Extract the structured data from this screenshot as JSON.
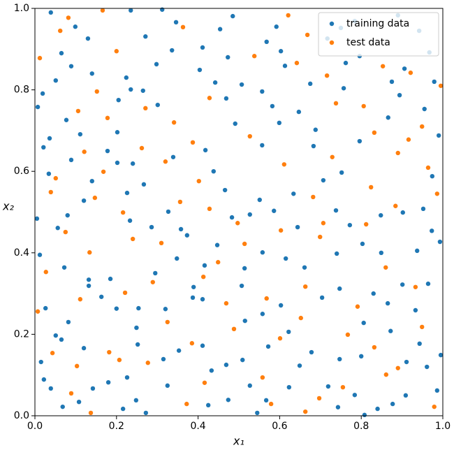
{
  "chart_data": {
    "type": "scatter",
    "xlabel": "x₁",
    "ylabel": "x₂",
    "xlim": [
      0,
      1
    ],
    "ylim": [
      0,
      1
    ],
    "xticks": [
      {
        "value": 0,
        "label": "0.0"
      },
      0.2,
      0.4,
      0.6,
      0.8,
      {
        "value": 1,
        "label": "1.0"
      }
    ],
    "yticks": [
      {
        "value": 0,
        "label": "0.0"
      },
      0.2,
      0.4,
      0.6,
      0.8,
      {
        "value": 1,
        "label": "1.0"
      }
    ],
    "legend": "upper right",
    "series": [
      {
        "name": "training data",
        "color": "#1f77b4",
        "x": [
          0.039,
          0.099,
          0.13,
          0.065,
          0.089,
          0.051,
          0.019,
          0.007,
          0.235,
          0.312,
          0.271,
          0.336,
          0.298,
          0.224,
          0.14,
          0.235,
          0.265,
          0.205,
          0.346,
          0.454,
          0.485,
          0.411,
          0.473,
          0.404,
          0.442,
          0.507,
          0.592,
          0.603,
          0.568,
          0.717,
          0.75,
          0.784,
          0.89,
          0.942,
          0.967,
          0.796,
          0.762,
          0.906,
          0.979,
          0.875,
          0.757,
          0.675,
          0.613,
          0.557,
          0.582,
          0.647,
          0.599,
          0.688,
          0.796,
          0.99,
          0.866,
          0.955,
          0.894,
          0.077,
          0.111,
          0.036,
          0.021,
          0.089,
          0.034,
          0.14,
          0.12,
          0.08,
          0.056,
          0.005,
          0.178,
          0.202,
          0.24,
          0.267,
          0.226,
          0.327,
          0.233,
          0.286,
          0.358,
          0.339,
          0.418,
          0.438,
          0.466,
          0.483,
          0.373,
          0.447,
          0.527,
          0.551,
          0.586,
          0.634,
          0.707,
          0.752,
          0.644,
          0.738,
          0.772,
          0.848,
          0.902,
          0.952,
          0.974,
          0.993,
          0.973,
          0.937,
          0.849,
          0.803,
          0.74,
          0.661,
          0.615,
          0.558,
          0.514,
          0.416,
          0.348,
          0.295,
          0.185,
          0.132,
          0.012,
          0.072,
          0.026,
          0.082,
          0.051,
          0.065,
          0.132,
          0.163,
          0.2,
          0.254,
          0.249,
          0.32,
          0.387,
          0.389,
          0.411,
          0.507,
          0.515,
          0.558,
          0.603,
          0.704,
          0.747,
          0.83,
          0.901,
          0.964,
          0.933,
          0.865,
          0.806,
          0.872,
          0.943,
          0.995,
          0.911,
          0.8,
          0.747,
          0.678,
          0.622,
          0.572,
          0.509,
          0.469,
          0.433,
          0.411,
          0.353,
          0.315,
          0.252,
          0.226,
          0.18,
          0.142,
          0.12,
          0.015,
          0.022,
          0.039,
          0.068,
          0.108,
          0.216,
          0.248,
          0.272,
          0.425,
          0.527,
          0.545,
          0.567,
          0.623,
          0.649,
          0.719,
          0.743,
          0.784,
          0.808,
          0.84,
          0.877,
          0.909,
          0.986,
          0.961,
          0.325,
          0.474,
          0.301,
          0.202,
          0.469,
          0.491,
          0.557,
          0.683
        ],
        "values": [
          0.99,
          0.955,
          0.926,
          0.89,
          0.858,
          0.823,
          0.791,
          0.758,
          0.995,
          0.997,
          0.931,
          0.897,
          0.863,
          0.83,
          0.84,
          0.801,
          0.798,
          0.775,
          0.966,
          0.949,
          0.981,
          0.904,
          0.88,
          0.849,
          0.818,
          0.813,
          0.955,
          0.895,
          0.918,
          0.926,
          0.952,
          0.969,
          0.983,
          0.945,
          0.892,
          0.883,
          0.866,
          0.852,
          0.82,
          0.82,
          0.804,
          0.815,
          0.859,
          0.796,
          0.76,
          0.746,
          0.719,
          0.702,
          0.674,
          0.688,
          0.732,
          0.753,
          0.787,
          0.726,
          0.691,
          0.681,
          0.659,
          0.628,
          0.594,
          0.576,
          0.528,
          0.492,
          0.461,
          0.484,
          0.65,
          0.621,
          0.619,
          0.568,
          0.547,
          0.501,
          0.479,
          0.463,
          0.458,
          0.635,
          0.652,
          0.6,
          0.554,
          0.487,
          0.443,
          0.419,
          0.494,
          0.53,
          0.503,
          0.545,
          0.578,
          0.597,
          0.463,
          0.504,
          0.468,
          0.492,
          0.499,
          0.508,
          0.588,
          0.427,
          0.454,
          0.405,
          0.4,
          0.422,
          0.398,
          0.364,
          0.386,
          0.401,
          0.362,
          0.369,
          0.386,
          0.35,
          0.336,
          0.334,
          0.395,
          0.364,
          0.264,
          0.23,
          0.197,
          0.187,
          0.319,
          0.292,
          0.263,
          0.264,
          0.216,
          0.262,
          0.29,
          0.316,
          0.286,
          0.319,
          0.233,
          0.25,
          0.271,
          0.29,
          0.312,
          0.3,
          0.322,
          0.324,
          0.259,
          0.276,
          0.228,
          0.208,
          0.177,
          0.149,
          0.132,
          0.146,
          0.139,
          0.156,
          0.206,
          0.17,
          0.137,
          0.125,
          0.111,
          0.172,
          0.16,
          0.139,
          0.175,
          0.094,
          0.082,
          0.067,
          0.166,
          0.132,
          0.089,
          0.067,
          0.022,
          0.034,
          0.017,
          0.038,
          0.007,
          0.026,
          0.074,
          0.007,
          0.038,
          0.07,
          0.123,
          0.072,
          0.021,
          0.051,
          0.002,
          0.017,
          0.029,
          0.05,
          0.062,
          0.12,
          0.074,
          0.039,
          0.763,
          0.696,
          0.779,
          0.717,
          0.664,
          0.662
        ]
      },
      {
        "name": "test data",
        "color": "#ff7f0e",
        "x": [
          0.166,
          0.082,
          0.062,
          0.012,
          0.2,
          0.363,
          0.538,
          0.621,
          0.668,
          0.642,
          0.716,
          0.853,
          0.921,
          0.995,
          0.152,
          0.106,
          0.178,
          0.271,
          0.341,
          0.428,
          0.738,
          0.806,
          0.832,
          0.949,
          0.916,
          0.527,
          0.387,
          0.262,
          0.121,
          0.051,
          0.168,
          0.32,
          0.402,
          0.611,
          0.729,
          0.89,
          0.964,
          0.986,
          0.824,
          0.682,
          0.884,
          0.356,
          0.216,
          0.428,
          0.147,
          0.039,
          0.075,
          0.134,
          0.24,
          0.31,
          0.497,
          0.514,
          0.603,
          0.707,
          0.699,
          0.812,
          0.449,
          0.413,
          0.289,
          0.027,
          0.111,
          0.221,
          0.469,
          0.568,
          0.663,
          0.86,
          0.933,
          0.791,
          0.949,
          0.007,
          0.325,
          0.488,
          0.601,
          0.767,
          0.652,
          0.043,
          0.182,
          0.207,
          0.103,
          0.277,
          0.385,
          0.558,
          0.832,
          0.89,
          0.861,
          0.089,
          0.137,
          0.372,
          0.416,
          0.579,
          0.663,
          0.755,
          0.697,
          0.979
        ],
        "values": [
          0.995,
          0.977,
          0.945,
          0.878,
          0.895,
          0.954,
          0.883,
          0.983,
          0.935,
          0.866,
          0.835,
          0.858,
          0.842,
          0.81,
          0.796,
          0.748,
          0.731,
          0.755,
          0.72,
          0.78,
          0.767,
          0.76,
          0.695,
          0.71,
          0.678,
          0.686,
          0.671,
          0.657,
          0.648,
          0.583,
          0.599,
          0.624,
          0.576,
          0.617,
          0.635,
          0.645,
          0.609,
          0.545,
          0.561,
          0.537,
          0.515,
          0.525,
          0.499,
          0.508,
          0.535,
          0.549,
          0.451,
          0.401,
          0.434,
          0.424,
          0.473,
          0.422,
          0.455,
          0.473,
          0.439,
          0.47,
          0.377,
          0.341,
          0.328,
          0.353,
          0.286,
          0.302,
          0.276,
          0.288,
          0.317,
          0.364,
          0.316,
          0.268,
          0.218,
          0.256,
          0.23,
          0.213,
          0.19,
          0.199,
          0.24,
          0.154,
          0.156,
          0.137,
          0.122,
          0.13,
          0.178,
          0.094,
          0.168,
          0.117,
          0.101,
          0.055,
          0.007,
          0.029,
          0.081,
          0.029,
          0.01,
          0.07,
          0.043,
          0.022
        ]
      }
    ]
  }
}
